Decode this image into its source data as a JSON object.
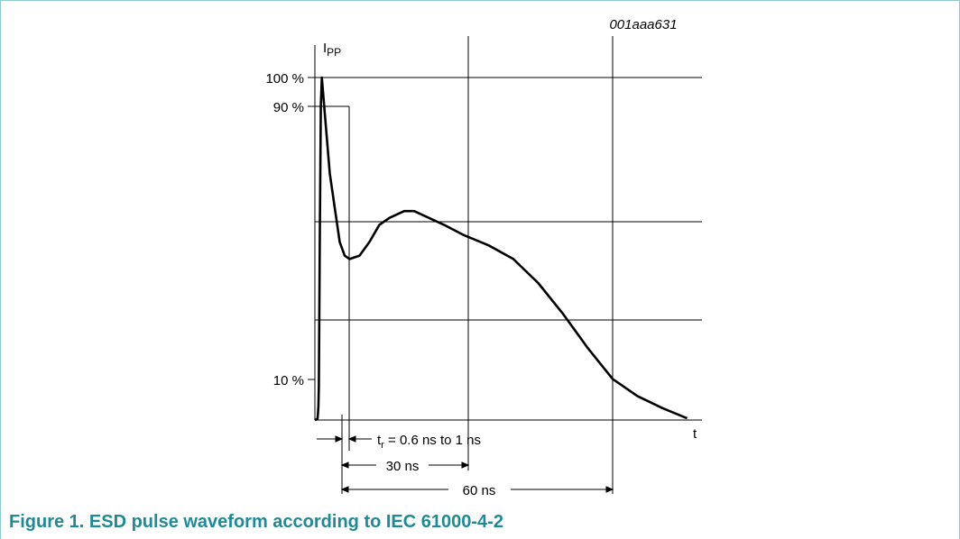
{
  "figure": {
    "id_label": "001aaa631",
    "caption": "Figure 1. ESD pulse waveform according to IEC 61000-4-2"
  },
  "chart_data": {
    "type": "line",
    "title": "",
    "xlabel": "t",
    "ylabel_main": "I",
    "ylabel_sub": "PP",
    "ytick_labels": [
      "100 %",
      "90 %",
      "10 %"
    ],
    "grid": true,
    "series": [
      {
        "x": [
          0,
          0.5,
          0.55,
          0.6,
          0.7,
          0.8,
          1,
          1.2,
          1.4,
          3,
          5,
          6,
          7,
          9,
          11,
          13,
          15,
          18,
          20,
          23,
          26,
          30,
          35,
          40,
          45,
          50,
          55,
          60,
          65,
          70,
          75
        ],
        "y": [
          0,
          0.3,
          0.6,
          1.5,
          4,
          10,
          55,
          92,
          100,
          72,
          52,
          48,
          47,
          48,
          52,
          57,
          59,
          61,
          61,
          59,
          57,
          54,
          51,
          47,
          40,
          31,
          21,
          12,
          7,
          3.5,
          0.5
        ]
      }
    ],
    "annotations": {
      "rise_time": {
        "prefix": "t",
        "sub": "r",
        "text": " = 0.6 ns to 1 ns"
      },
      "at_30ns": "30 ns",
      "at_60ns": "60 ns"
    }
  }
}
